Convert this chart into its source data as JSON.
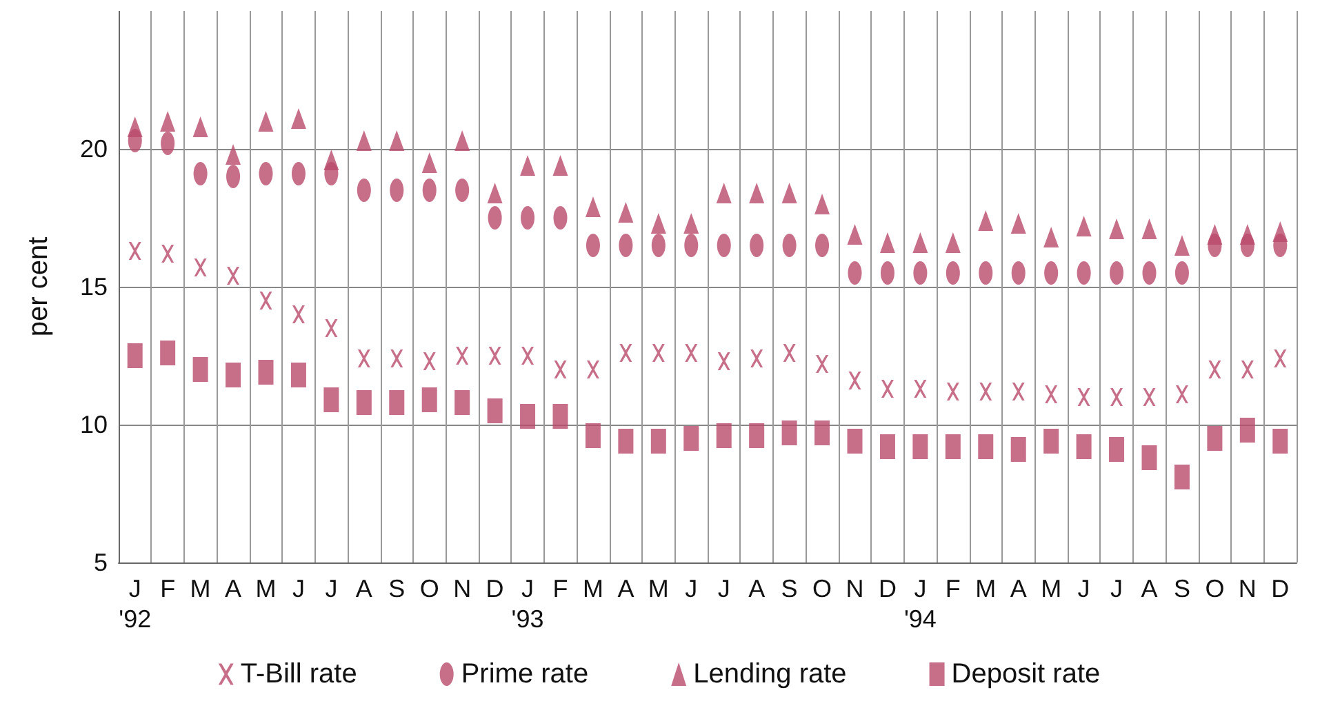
{
  "chart_data": {
    "type": "scatter",
    "ylabel": "per cent",
    "categories": [
      "J\n'92",
      "F",
      "M",
      "A",
      "M",
      "J",
      "J",
      "A",
      "S",
      "O",
      "N",
      "D",
      "J\n'93",
      "F",
      "M",
      "A",
      "M",
      "J",
      "J",
      "A",
      "S",
      "O",
      "N",
      "D",
      "J\n'94",
      "F",
      "M",
      "A",
      "M",
      "J",
      "J",
      "A",
      "S",
      "O",
      "N",
      "D"
    ],
    "ylim": [
      5,
      25
    ],
    "yticks": [
      5,
      10,
      15,
      20
    ],
    "grid": true,
    "legend": "bottom",
    "series": [
      {
        "name": "T-Bill rate",
        "color": "#b94a6c",
        "marker": "cross",
        "values": [
          16.3,
          16.2,
          15.7,
          15.4,
          14.5,
          14.0,
          13.5,
          12.4,
          12.4,
          12.3,
          12.5,
          12.5,
          12.5,
          12.0,
          12.0,
          12.6,
          12.6,
          12.6,
          12.3,
          12.4,
          12.6,
          12.2,
          11.6,
          11.3,
          11.3,
          11.2,
          11.2,
          11.2,
          11.1,
          11.0,
          11.0,
          11.0,
          11.1,
          12.0,
          12.0,
          12.4
        ]
      },
      {
        "name": "Prime rate",
        "color": "#b94a6c",
        "marker": "circle",
        "values": [
          20.3,
          20.2,
          19.1,
          19.0,
          19.1,
          19.1,
          19.1,
          18.5,
          18.5,
          18.5,
          18.5,
          17.5,
          17.5,
          17.5,
          16.5,
          16.5,
          16.5,
          16.5,
          16.5,
          16.5,
          16.5,
          16.5,
          15.5,
          15.5,
          15.5,
          15.5,
          15.5,
          15.5,
          15.5,
          15.5,
          15.5,
          15.5,
          15.5,
          16.5,
          16.5,
          16.5
        ]
      },
      {
        "name": "Lending rate",
        "color": "#b94a6c",
        "marker": "triangle",
        "values": [
          20.8,
          21.0,
          20.8,
          19.8,
          21.0,
          21.1,
          19.6,
          20.3,
          20.3,
          19.5,
          20.3,
          18.4,
          19.4,
          19.4,
          17.9,
          17.7,
          17.3,
          17.3,
          18.4,
          18.4,
          18.4,
          18.0,
          16.9,
          16.6,
          16.6,
          16.6,
          17.4,
          17.3,
          16.8,
          17.2,
          17.1,
          17.1,
          16.5,
          16.9,
          16.9,
          17.0
        ]
      },
      {
        "name": "Deposit rate",
        "color": "#b94a6c",
        "marker": "square",
        "values": [
          12.5,
          12.6,
          12.0,
          11.8,
          11.9,
          11.8,
          10.9,
          10.8,
          10.8,
          10.9,
          10.8,
          10.5,
          10.3,
          10.3,
          9.6,
          9.4,
          9.4,
          9.5,
          9.6,
          9.6,
          9.7,
          9.7,
          9.4,
          9.2,
          9.2,
          9.2,
          9.2,
          9.1,
          9.4,
          9.2,
          9.1,
          8.8,
          8.1,
          9.5,
          9.8,
          9.4
        ]
      }
    ]
  }
}
